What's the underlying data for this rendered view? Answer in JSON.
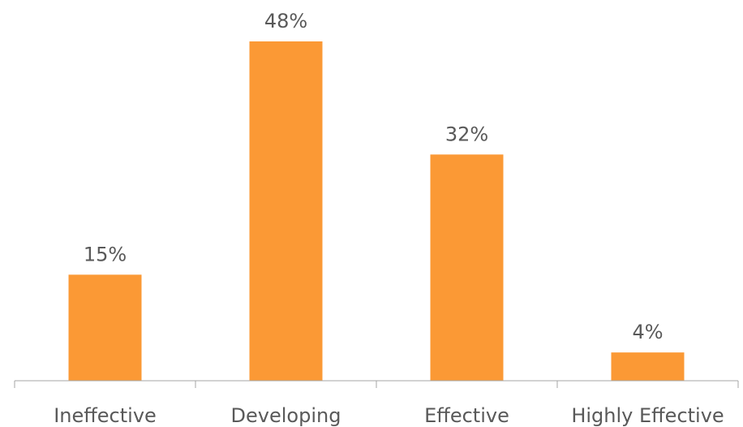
{
  "chart_data": {
    "type": "bar",
    "categories": [
      "Ineffective",
      "Developing",
      "Effective",
      "Highly Effective"
    ],
    "values": [
      15,
      48,
      32,
      4
    ],
    "data_labels": [
      "15%",
      "48%",
      "32%",
      "4%"
    ],
    "title": "",
    "xlabel": "",
    "ylabel": "",
    "ylim": [
      0,
      48
    ],
    "grid": false,
    "legend": "none",
    "bar_color": "#fb9935"
  }
}
